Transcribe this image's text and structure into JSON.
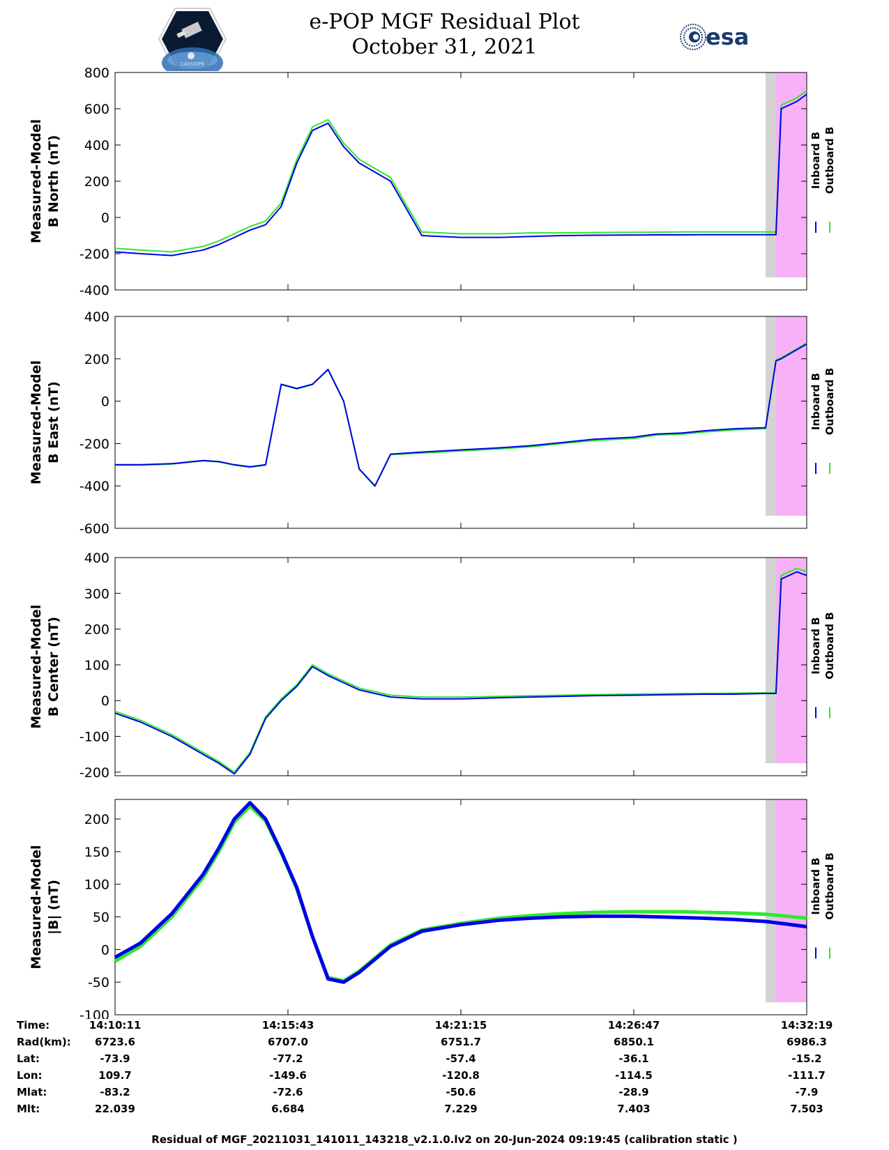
{
  "header": {
    "title_line1": "e-POP MGF Residual Plot",
    "title_line2": "October 31, 2021",
    "left_logo_text": "CASSIOPE",
    "right_logo_text": "esa"
  },
  "colors": {
    "inboard": "#0000e6",
    "outboard": "#2ee82e",
    "gray_band": "#d3d3d3",
    "magenta_band": "#f7b2f7"
  },
  "legend": [
    "Inboard B",
    "Outboard B"
  ],
  "chart_data": [
    {
      "type": "line",
      "ylabel_line1": "Measured-Model",
      "ylabel_line2": "B North (nT)",
      "ylim": [
        -400,
        800
      ],
      "yticks": [
        -400,
        -200,
        0,
        200,
        400,
        600,
        800
      ],
      "x": [
        "14:10:11",
        "14:11:00",
        "14:12:00",
        "14:13:00",
        "14:13:30",
        "14:14:00",
        "14:14:30",
        "14:15:00",
        "14:15:30",
        "14:16:00",
        "14:16:30",
        "14:17:00",
        "14:17:30",
        "14:18:00",
        "14:19:00",
        "14:20:00",
        "14:21:15",
        "14:22:30",
        "14:23:30",
        "14:24:30",
        "14:25:30",
        "14:26:47",
        "14:27:30",
        "14:28:20",
        "14:29:00",
        "14:30:00",
        "14:31:00",
        "14:31:20",
        "14:31:30",
        "14:32:00",
        "14:32:19"
      ],
      "series": [
        {
          "name": "Inboard B",
          "values": [
            -190,
            -200,
            -210,
            -180,
            -150,
            -110,
            -70,
            -40,
            60,
            300,
            480,
            520,
            390,
            300,
            200,
            -100,
            -110,
            -110,
            -105,
            -100,
            -98,
            -97,
            -96,
            -96,
            -95,
            -95,
            -95,
            -95,
            600,
            640,
            680
          ]
        },
        {
          "name": "Outboard B",
          "values": [
            -170,
            -180,
            -190,
            -160,
            -130,
            -90,
            -50,
            -20,
            80,
            320,
            500,
            540,
            410,
            320,
            220,
            -80,
            -90,
            -90,
            -85,
            -85,
            -83,
            -82,
            -81,
            -80,
            -80,
            -80,
            -80,
            -80,
            620,
            660,
            700
          ]
        }
      ],
      "gray_band": [
        "14:31:00",
        "14:31:20"
      ],
      "magenta_band": [
        "14:31:20",
        "14:32:19"
      ]
    },
    {
      "type": "line",
      "ylabel_line1": "Measured-Model",
      "ylabel_line2": "B East (nT)",
      "ylim": [
        -600,
        400
      ],
      "yticks": [
        -600,
        -400,
        -200,
        0,
        200,
        400
      ],
      "x": [
        "14:10:11",
        "14:11:00",
        "14:12:00",
        "14:13:00",
        "14:13:30",
        "14:14:00",
        "14:14:30",
        "14:15:00",
        "14:15:30",
        "14:16:00",
        "14:16:30",
        "14:17:00",
        "14:17:30",
        "14:18:00",
        "14:18:30",
        "14:19:00",
        "14:20:00",
        "14:21:15",
        "14:22:30",
        "14:23:30",
        "14:24:30",
        "14:25:30",
        "14:26:47",
        "14:27:30",
        "14:28:20",
        "14:29:00",
        "14:30:00",
        "14:31:00",
        "14:31:20",
        "14:31:30",
        "14:32:19"
      ],
      "series": [
        {
          "name": "Inboard B",
          "values": [
            -300,
            -300,
            -295,
            -280,
            -285,
            -300,
            -310,
            -300,
            80,
            60,
            80,
            150,
            0,
            -320,
            -400,
            -250,
            -240,
            -230,
            -220,
            -210,
            -195,
            -180,
            -170,
            -155,
            -150,
            -140,
            -130,
            -125,
            190,
            200,
            270
          ]
        },
        {
          "name": "Outboard B",
          "values": [
            -302,
            -302,
            -297,
            -282,
            -287,
            -302,
            -312,
            -302,
            78,
            58,
            78,
            148,
            -2,
            -322,
            -402,
            -252,
            -245,
            -235,
            -225,
            -215,
            -200,
            -186,
            -176,
            -160,
            -156,
            -146,
            -136,
            -130,
            195,
            205,
            275
          ]
        }
      ],
      "gray_band": [
        "14:31:00",
        "14:31:20"
      ],
      "magenta_band": [
        "14:31:20",
        "14:32:19"
      ]
    },
    {
      "type": "line",
      "ylabel_line1": "Measured-Model",
      "ylabel_line2": "B Center (nT)",
      "ylim": [
        -210,
        400
      ],
      "yticks": [
        -200,
        -100,
        0,
        100,
        200,
        300,
        400
      ],
      "x": [
        "14:10:11",
        "14:11:00",
        "14:12:00",
        "14:13:00",
        "14:13:30",
        "14:14:00",
        "14:14:30",
        "14:15:00",
        "14:15:30",
        "14:16:00",
        "14:16:30",
        "14:17:00",
        "14:17:30",
        "14:18:00",
        "14:19:00",
        "14:20:00",
        "14:21:15",
        "14:22:30",
        "14:23:30",
        "14:24:30",
        "14:25:30",
        "14:26:47",
        "14:27:30",
        "14:28:20",
        "14:29:00",
        "14:30:00",
        "14:31:00",
        "14:31:20",
        "14:31:30",
        "14:32:00",
        "14:32:19"
      ],
      "series": [
        {
          "name": "Inboard B",
          "values": [
            -35,
            -60,
            -100,
            -150,
            -175,
            -205,
            -150,
            -50,
            0,
            40,
            95,
            70,
            50,
            30,
            10,
            5,
            5,
            8,
            10,
            12,
            14,
            15,
            16,
            17,
            18,
            18,
            20,
            20,
            340,
            360,
            350
          ]
        },
        {
          "name": "Outboard B",
          "values": [
            -30,
            -55,
            -95,
            -145,
            -170,
            -200,
            -145,
            -45,
            5,
            45,
            100,
            75,
            55,
            35,
            15,
            10,
            10,
            12,
            14,
            15,
            17,
            18,
            19,
            20,
            20,
            21,
            22,
            22,
            350,
            370,
            360
          ]
        }
      ],
      "gray_band": [
        "14:31:00",
        "14:31:20"
      ],
      "magenta_band": [
        "14:31:20",
        "14:32:19"
      ]
    },
    {
      "type": "line",
      "ylabel_line1": "Measured-Model",
      "ylabel_line2": "|B| (nT)",
      "ylim": [
        -100,
        230
      ],
      "yticks": [
        -100,
        -50,
        0,
        50,
        100,
        150,
        200
      ],
      "x": [
        "14:10:11",
        "14:11:00",
        "14:12:00",
        "14:13:00",
        "14:13:30",
        "14:14:00",
        "14:14:30",
        "14:15:00",
        "14:15:30",
        "14:16:00",
        "14:16:30",
        "14:17:00",
        "14:17:30",
        "14:18:00",
        "14:19:00",
        "14:20:00",
        "14:21:15",
        "14:22:30",
        "14:23:30",
        "14:24:30",
        "14:25:30",
        "14:26:47",
        "14:27:30",
        "14:28:20",
        "14:29:00",
        "14:30:00",
        "14:31:00",
        "14:31:30",
        "14:32:19"
      ],
      "series": [
        {
          "name": "Inboard B",
          "values": [
            -12,
            10,
            55,
            115,
            155,
            200,
            225,
            200,
            150,
            95,
            20,
            -45,
            -50,
            -35,
            5,
            28,
            38,
            45,
            48,
            50,
            51,
            51,
            50,
            49,
            48,
            46,
            43,
            40,
            35
          ]
        },
        {
          "name": "Outboard B",
          "values": [
            -18,
            5,
            50,
            110,
            150,
            195,
            220,
            197,
            148,
            93,
            20,
            -43,
            -48,
            -33,
            7,
            30,
            40,
            48,
            52,
            55,
            57,
            58,
            58,
            58,
            57,
            56,
            54,
            52,
            48
          ]
        }
      ],
      "gray_band": [
        "14:31:00",
        "14:31:20"
      ],
      "magenta_band": [
        "14:31:20",
        "14:32:19"
      ]
    }
  ],
  "xaxis": {
    "start": "14:10:11",
    "end": "14:32:19",
    "ticks": [
      "14:10:11",
      "14:15:43",
      "14:21:15",
      "14:26:47",
      "14:32:19"
    ]
  },
  "ephemeris": {
    "rows": [
      {
        "label": "Time:",
        "values": [
          "14:10:11",
          "14:15:43",
          "14:21:15",
          "14:26:47",
          "14:32:19"
        ]
      },
      {
        "label": "Rad(km):",
        "values": [
          "6723.6",
          "6707.0",
          "6751.7",
          "6850.1",
          "6986.3"
        ]
      },
      {
        "label": "Lat:",
        "values": [
          "-73.9",
          "-77.2",
          "-57.4",
          "-36.1",
          "-15.2"
        ]
      },
      {
        "label": "Lon:",
        "values": [
          "109.7",
          "-149.6",
          "-120.8",
          "-114.5",
          "-111.7"
        ]
      },
      {
        "label": "Mlat:",
        "values": [
          "-83.2",
          "-72.6",
          "-50.6",
          "-28.9",
          "-7.9"
        ]
      },
      {
        "label": "Mlt:",
        "values": [
          "22.039",
          "6.684",
          "7.229",
          "7.403",
          "7.503"
        ]
      }
    ]
  },
  "footer": "Residual of MGF_20211031_141011_143218_v2.1.0.lv2 on 20-Jun-2024 09:19:45 (calibration static )"
}
